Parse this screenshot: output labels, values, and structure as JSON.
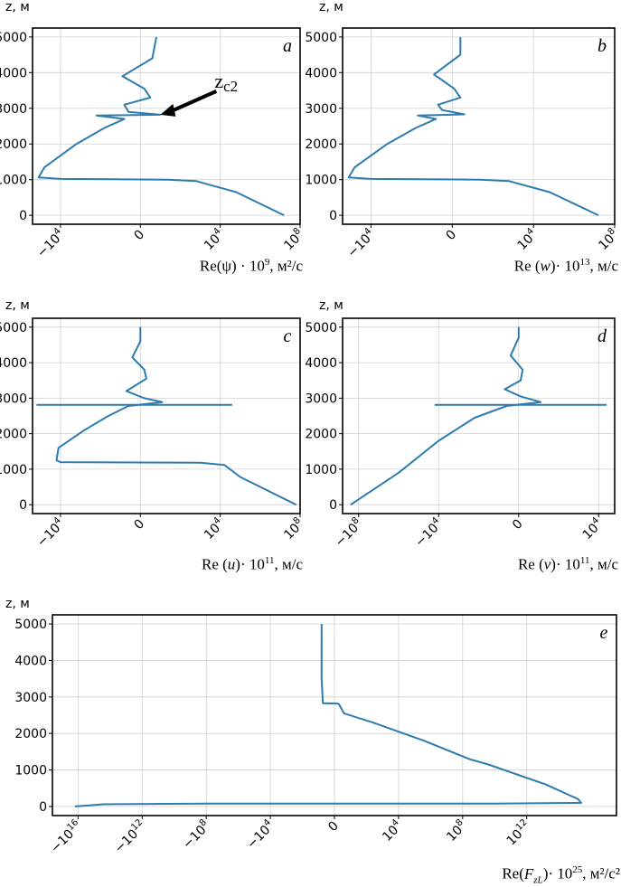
{
  "ylabel": "z, м",
  "charts": [
    {
      "id": "a",
      "panel_label": "a",
      "xlabel_html": "Re(ψ) · 10<sup>9</sup>, м²/с",
      "ylim": [
        0,
        5000
      ],
      "yticks": [
        0,
        1000,
        2000,
        3000,
        4000,
        5000
      ],
      "xticks": [
        "−10^4",
        "0",
        "10^4",
        "10^8"
      ],
      "annotation": {
        "text": "z",
        "sub": "c2",
        "x": 0.5,
        "y": 2820
      },
      "series": [
        {
          "type": "line",
          "color": "#2e7bb0",
          "points": [
            [
              3.6,
              0
            ],
            [
              2.4,
              650
            ],
            [
              1.4,
              960
            ],
            [
              0.7,
              1000
            ],
            [
              -2.0,
              1020
            ],
            [
              -2.55,
              1060
            ],
            [
              -2.4,
              1350
            ],
            [
              -1.6,
              2000
            ],
            [
              -0.9,
              2450
            ],
            [
              -0.4,
              2700
            ],
            [
              -1.1,
              2800
            ],
            [
              0.5,
              2820
            ],
            [
              -0.3,
              2900
            ],
            [
              -0.4,
              3100
            ],
            [
              0.25,
              3300
            ],
            [
              0.1,
              3550
            ],
            [
              -0.45,
              3900
            ],
            [
              0.3,
              4400
            ],
            [
              0.4,
              5000
            ]
          ]
        }
      ]
    },
    {
      "id": "b",
      "panel_label": "b",
      "xlabel_html": "Re (<i>w</i>)· 10<sup>13</sup>, м/с",
      "ylim": [
        0,
        5000
      ],
      "yticks": [
        0,
        1000,
        2000,
        3000,
        4000,
        5000
      ],
      "xticks": [
        "−10^4",
        "0",
        "10^4",
        "10^8"
      ],
      "series": [
        {
          "type": "line",
          "color": "#2e7bb0",
          "points": [
            [
              3.6,
              0
            ],
            [
              2.4,
              650
            ],
            [
              1.4,
              960
            ],
            [
              0.7,
              1000
            ],
            [
              -2.0,
              1020
            ],
            [
              -2.55,
              1060
            ],
            [
              -2.4,
              1350
            ],
            [
              -1.6,
              2000
            ],
            [
              -0.9,
              2450
            ],
            [
              -0.4,
              2700
            ],
            [
              -0.85,
              2800
            ],
            [
              0.3,
              2830
            ],
            [
              -0.25,
              2950
            ],
            [
              -0.35,
              3100
            ],
            [
              0.2,
              3300
            ],
            [
              0.05,
              3550
            ],
            [
              -0.45,
              3950
            ],
            [
              0.2,
              4500
            ],
            [
              0.2,
              5000
            ]
          ]
        }
      ]
    },
    {
      "id": "c",
      "panel_label": "c",
      "xlabel_html": "Re (<i>u</i>)· 10<sup>11</sup>, м/с",
      "ylim": [
        0,
        5000
      ],
      "yticks": [
        0,
        1000,
        2000,
        3000,
        4000,
        5000
      ],
      "xticks": [
        "−10^4",
        "0",
        "10^4",
        "10^8"
      ],
      "series": [
        {
          "type": "line",
          "color": "#2e7bb0",
          "points": [
            [
              3.9,
              0
            ],
            [
              2.5,
              780
            ],
            [
              2.1,
              1120
            ],
            [
              1.5,
              1180
            ],
            [
              -2.0,
              1200
            ],
            [
              -2.1,
              1250
            ],
            [
              -2.05,
              1600
            ],
            [
              -1.4,
              2100
            ],
            [
              -0.8,
              2500
            ],
            [
              -0.3,
              2780
            ],
            [
              0.55,
              2890
            ],
            [
              0.1,
              3000
            ],
            [
              -0.35,
              3200
            ],
            [
              0.15,
              3550
            ],
            [
              0.1,
              3800
            ],
            [
              -0.2,
              4150
            ],
            [
              0.0,
              4600
            ],
            [
              0.0,
              5000
            ]
          ]
        },
        {
          "type": "line",
          "color": "#2e7bb0",
          "points": [
            [
              -2.6,
              2810
            ],
            [
              2.3,
              2810
            ]
          ]
        }
      ]
    },
    {
      "id": "d",
      "panel_label": "d",
      "xlabel_html": "Re (<i>v</i>)· 10<sup>11</sup>, м/с",
      "ylim": [
        0,
        5000
      ],
      "yticks": [
        0,
        1000,
        2000,
        3000,
        4000,
        5000
      ],
      "xticks": [
        "−10^8",
        "−10^4",
        "0",
        "10^4"
      ],
      "series": [
        {
          "type": "line",
          "color": "#2e7bb0",
          "points": [
            [
              -4.2,
              0
            ],
            [
              -3.0,
              900
            ],
            [
              -2.0,
              1800
            ],
            [
              -1.1,
              2450
            ],
            [
              -0.3,
              2780
            ],
            [
              0.55,
              2890
            ],
            [
              0.05,
              3050
            ],
            [
              -0.35,
              3250
            ],
            [
              0.05,
              3500
            ],
            [
              0.1,
              3800
            ],
            [
              -0.2,
              4200
            ],
            [
              0.0,
              4700
            ],
            [
              0.0,
              5000
            ]
          ]
        },
        {
          "type": "line",
          "color": "#2e7bb0",
          "points": [
            [
              -2.1,
              2810
            ],
            [
              2.2,
              2810
            ]
          ]
        }
      ]
    },
    {
      "id": "e",
      "panel_label": "e",
      "xlabel_html": "Re(<i>F<sub>zL</sub></i>)· 10<sup>25</sup>, м²/с²",
      "ylim": [
        0,
        5000
      ],
      "yticks": [
        0,
        1000,
        2000,
        3000,
        4000,
        5000
      ],
      "xticks": [
        "−10^16",
        "−10^12",
        "−10^8",
        "−10^4",
        "0",
        "10^4",
        "10^8",
        "10^12"
      ],
      "series": [
        {
          "type": "line",
          "color": "#2e7bb0",
          "points": [
            [
              -4.05,
              0
            ],
            [
              -3.6,
              60
            ],
            [
              -2.0,
              80
            ],
            [
              2.5,
              80
            ],
            [
              3.85,
              100
            ],
            [
              3.8,
              200
            ],
            [
              3.3,
              600
            ],
            [
              2.4,
              1150
            ],
            [
              2.1,
              1300
            ],
            [
              1.4,
              1800
            ],
            [
              0.6,
              2300
            ],
            [
              0.15,
              2550
            ],
            [
              0.07,
              2800
            ],
            [
              0.05,
              2820
            ],
            [
              -0.18,
              2830
            ],
            [
              -0.2,
              3500
            ],
            [
              -0.2,
              5000
            ]
          ]
        }
      ]
    }
  ]
}
